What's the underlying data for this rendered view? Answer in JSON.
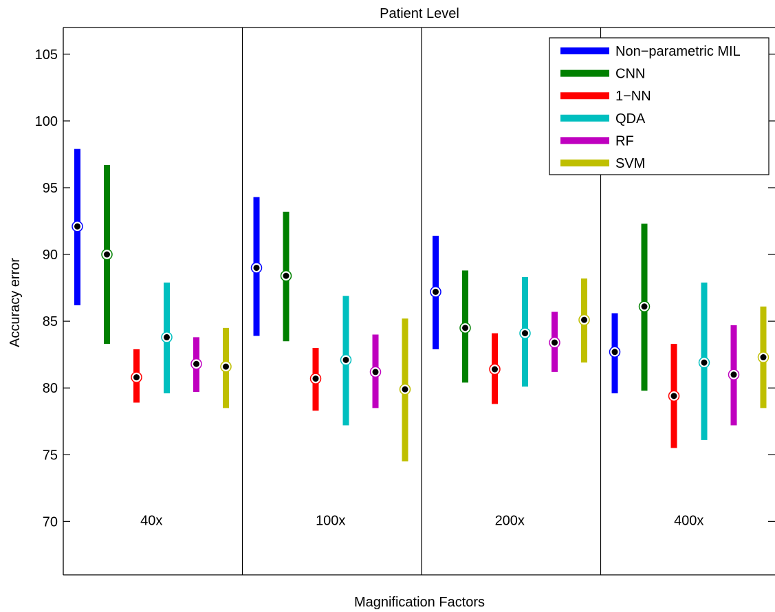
{
  "chart_data": {
    "type": "errorbar",
    "title": "Patient Level",
    "xlabel": "Magnification Factors",
    "ylabel": "Accuracy error",
    "ylim": [
      66,
      107
    ],
    "yticks": [
      70,
      75,
      80,
      85,
      90,
      95,
      100,
      105
    ],
    "grid": false,
    "legend_position": "top-right",
    "groups": [
      "40x",
      "100x",
      "200x",
      "400x"
    ],
    "series": [
      {
        "name": "Non−parametric MIL",
        "color": "#0000ff",
        "mean": [
          92.1,
          89.0,
          87.2,
          82.7
        ],
        "low": [
          86.2,
          83.9,
          82.9,
          79.6
        ],
        "high": [
          97.9,
          94.3,
          91.4,
          85.6
        ]
      },
      {
        "name": "CNN",
        "color": "#008000",
        "mean": [
          90.0,
          88.4,
          84.5,
          86.1
        ],
        "low": [
          83.3,
          83.5,
          80.4,
          79.8
        ],
        "high": [
          96.7,
          93.2,
          88.8,
          92.3
        ]
      },
      {
        "name": "1−NN",
        "color": "#ff0000",
        "mean": [
          80.8,
          80.7,
          81.4,
          79.4
        ],
        "low": [
          78.9,
          78.3,
          78.8,
          75.5
        ],
        "high": [
          82.9,
          83.0,
          84.1,
          83.3
        ]
      },
      {
        "name": "QDA",
        "color": "#00bfbf",
        "mean": [
          83.8,
          82.1,
          84.1,
          81.9
        ],
        "low": [
          79.6,
          77.2,
          80.1,
          76.1
        ],
        "high": [
          87.9,
          86.9,
          88.3,
          87.9
        ]
      },
      {
        "name": "RF",
        "color": "#bf00bf",
        "mean": [
          81.8,
          81.2,
          83.4,
          81.0
        ],
        "low": [
          79.7,
          78.5,
          81.2,
          77.2
        ],
        "high": [
          83.8,
          84.0,
          85.7,
          84.7
        ]
      },
      {
        "name": "SVM",
        "color": "#bfbf00",
        "mean": [
          81.6,
          79.9,
          85.1,
          82.3
        ],
        "low": [
          78.5,
          74.5,
          81.9,
          78.5
        ],
        "high": [
          84.5,
          85.2,
          88.2,
          86.1
        ]
      }
    ]
  }
}
